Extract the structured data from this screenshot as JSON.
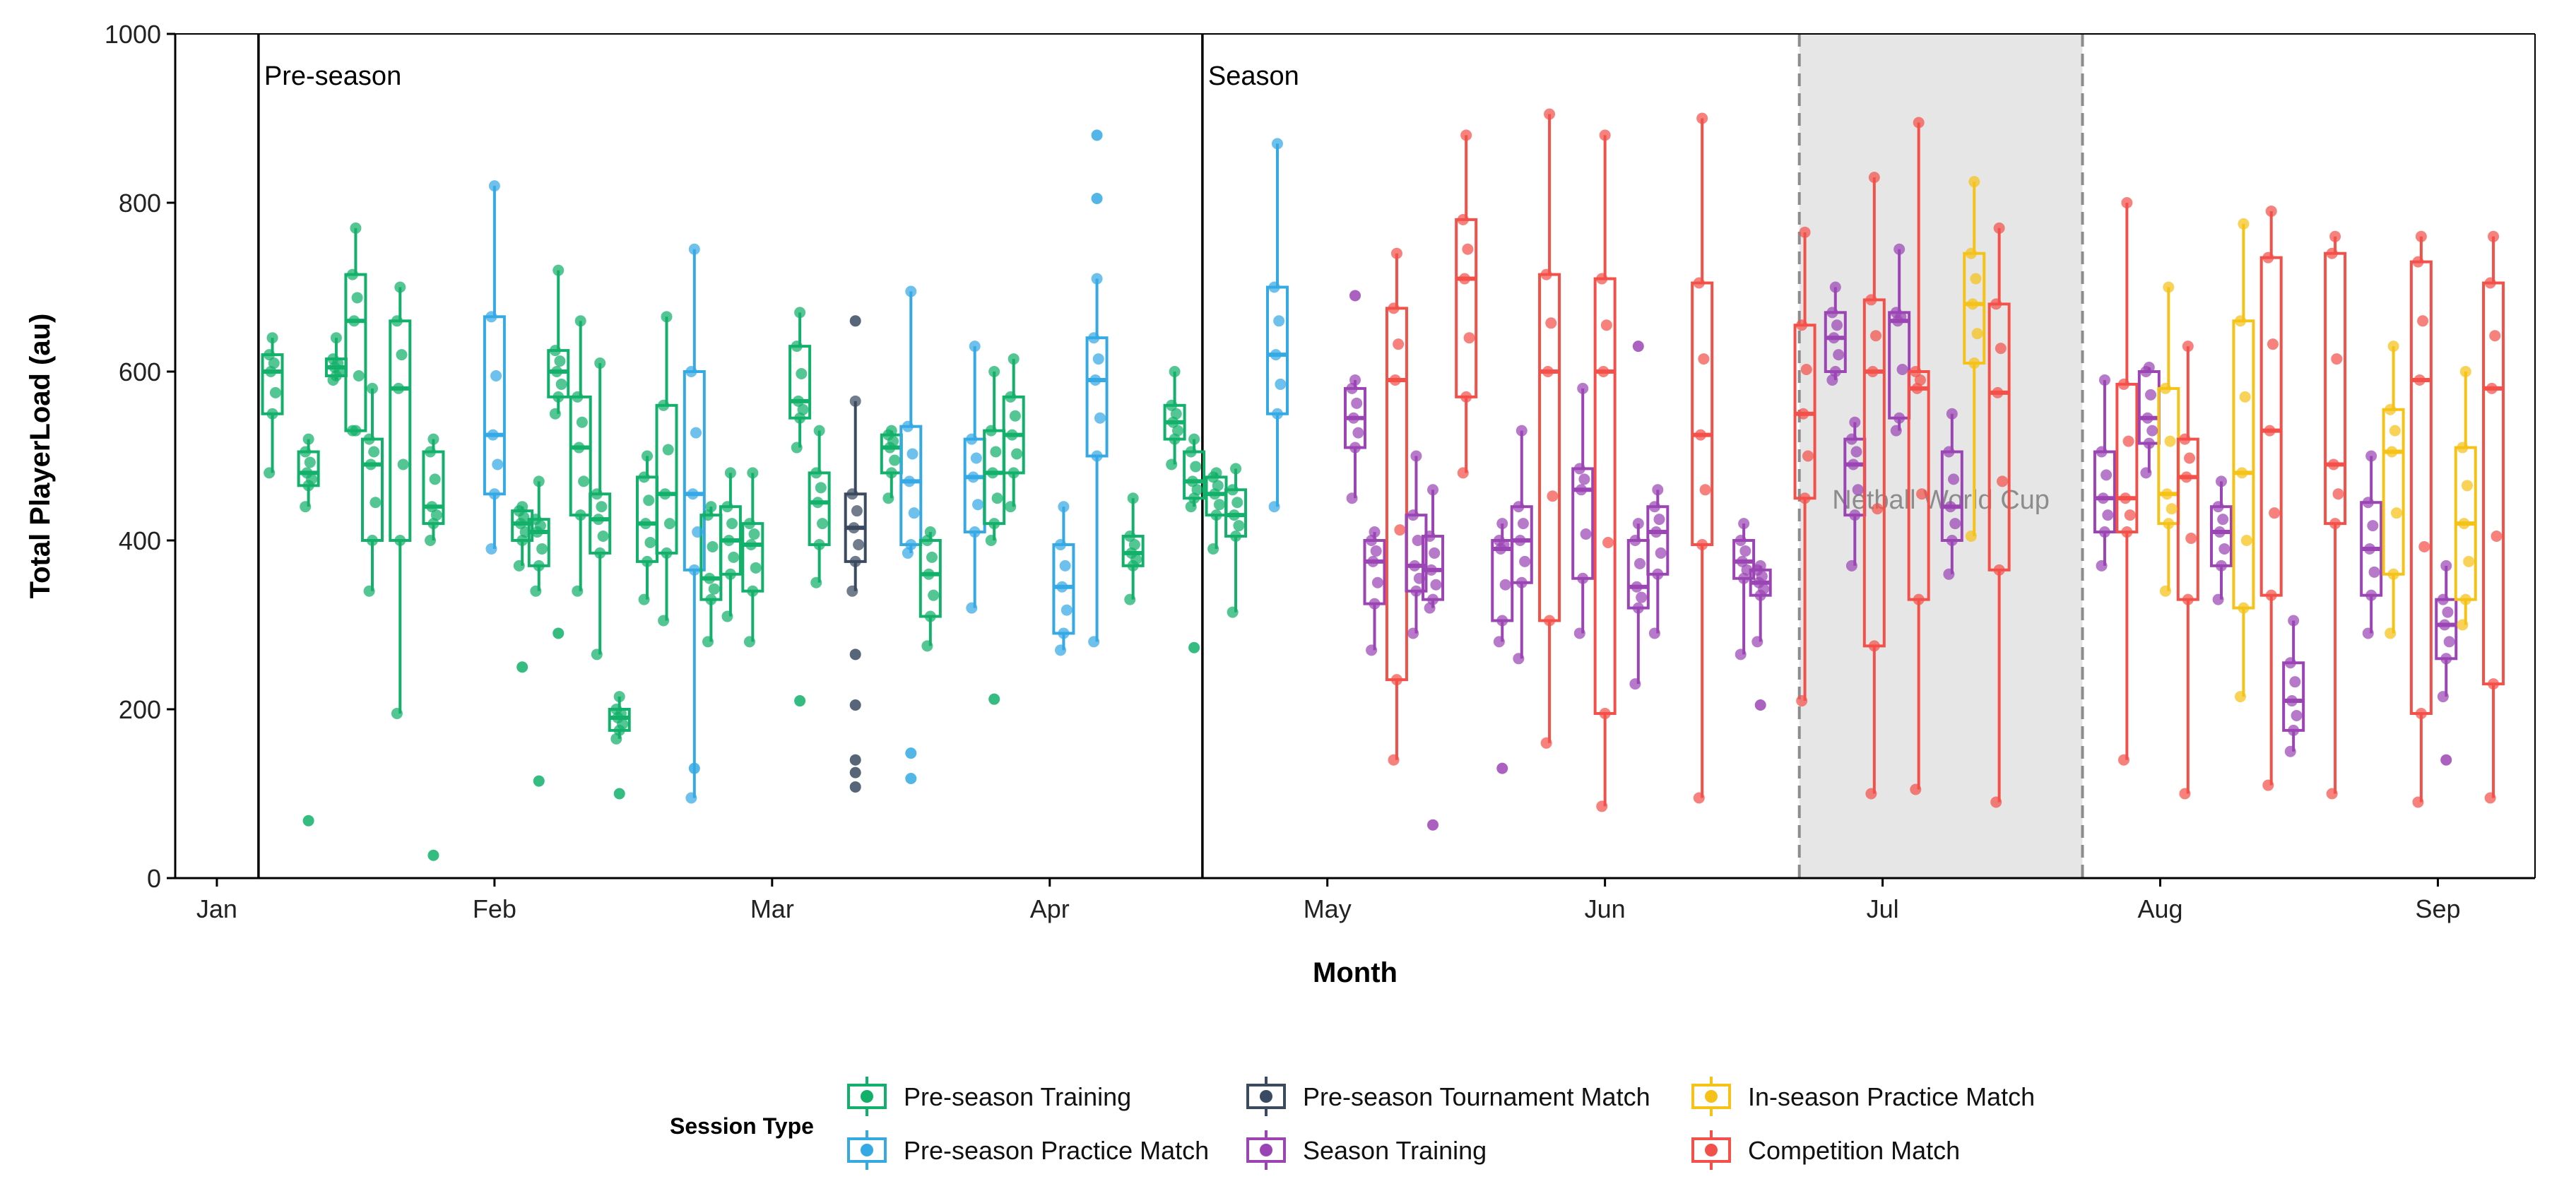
{
  "chart_data": {
    "type": "box",
    "xlabel": "Month",
    "ylabel": "Total PlayerLoad (au)",
    "x_ticks": [
      "Jan",
      "Feb",
      "Mar",
      "Apr",
      "May",
      "Jun",
      "Jul",
      "Aug",
      "Sep"
    ],
    "y_ticks": [
      0,
      200,
      400,
      600,
      800,
      1000
    ],
    "ylim": [
      0,
      1000
    ],
    "x_domain": [
      -0.15,
      8.35
    ],
    "grid": false,
    "phase_markers": [
      {
        "label": "Pre-season",
        "x": 0.15
      },
      {
        "label": "Season",
        "x": 3.55
      }
    ],
    "shaded_region": {
      "label": "Netball World Cup",
      "x_start": 5.7,
      "x_end": 6.72
    },
    "legend": {
      "title": "Session Type",
      "position": "bottom",
      "items": [
        {
          "key": "pst",
          "label": "Pre-season Training"
        },
        {
          "key": "ptm",
          "label": "Pre-season Tournament Match"
        },
        {
          "key": "ipm",
          "label": "In-season Practice Match"
        },
        {
          "key": "ppm",
          "label": "Pre-season Practice Match"
        },
        {
          "key": "st",
          "label": "Season Training"
        },
        {
          "key": "cm",
          "label": "Competition Match"
        }
      ]
    },
    "colors": {
      "pst": "#12b06a",
      "ppm": "#34a9e4",
      "ptm": "#3a4a60",
      "st": "#9b45b5",
      "ipm": "#f5c218",
      "cm": "#f4504a"
    },
    "boxes": [
      {
        "type": "pst",
        "x": 0.2,
        "min": 480,
        "q1": 550,
        "median": 600,
        "q3": 620,
        "max": 640
      },
      {
        "type": "pst",
        "x": 0.33,
        "min": 440,
        "q1": 465,
        "median": 480,
        "q3": 505,
        "max": 520
      },
      {
        "type": "pst",
        "x": 0.43,
        "min": 590,
        "q1": 595,
        "median": 605,
        "q3": 615,
        "max": 640
      },
      {
        "type": "pst",
        "x": 0.5,
        "min": 530,
        "q1": 530,
        "median": 660,
        "q3": 715,
        "max": 770
      },
      {
        "type": "pst",
        "x": 0.56,
        "min": 340,
        "q1": 400,
        "median": 490,
        "q3": 520,
        "max": 580
      },
      {
        "type": "pst",
        "x": 0.66,
        "min": 195,
        "q1": 400,
        "median": 580,
        "q3": 660,
        "max": 700
      },
      {
        "type": "pst",
        "x": 0.78,
        "min": 400,
        "q1": 420,
        "median": 440,
        "q3": 505,
        "max": 520
      },
      {
        "type": "ppm",
        "x": 1.0,
        "min": 390,
        "q1": 455,
        "median": 525,
        "q3": 665,
        "max": 820
      },
      {
        "type": "pst",
        "x": 1.1,
        "min": 370,
        "q1": 400,
        "median": 420,
        "q3": 435,
        "max": 440
      },
      {
        "type": "pst",
        "x": 1.16,
        "min": 340,
        "q1": 370,
        "median": 410,
        "q3": 425,
        "max": 470
      },
      {
        "type": "pst",
        "x": 1.23,
        "min": 550,
        "q1": 570,
        "median": 600,
        "q3": 625,
        "max": 720
      },
      {
        "type": "pst",
        "x": 1.31,
        "min": 340,
        "q1": 430,
        "median": 510,
        "q3": 570,
        "max": 660
      },
      {
        "type": "pst",
        "x": 1.38,
        "min": 265,
        "q1": 385,
        "median": 425,
        "q3": 455,
        "max": 610
      },
      {
        "type": "pst",
        "x": 1.45,
        "min": 165,
        "q1": 175,
        "median": 190,
        "q3": 200,
        "max": 215
      },
      {
        "type": "pst",
        "x": 1.55,
        "min": 330,
        "q1": 375,
        "median": 420,
        "q3": 475,
        "max": 500
      },
      {
        "type": "pst",
        "x": 1.62,
        "min": 305,
        "q1": 385,
        "median": 455,
        "q3": 560,
        "max": 665
      },
      {
        "type": "ppm",
        "x": 1.72,
        "min": 95,
        "q1": 365,
        "median": 455,
        "q3": 600,
        "max": 745
      },
      {
        "type": "pst",
        "x": 1.78,
        "min": 280,
        "q1": 330,
        "median": 355,
        "q3": 430,
        "max": 440
      },
      {
        "type": "pst",
        "x": 1.85,
        "min": 310,
        "q1": 360,
        "median": 400,
        "q3": 440,
        "max": 480
      },
      {
        "type": "pst",
        "x": 1.93,
        "min": 280,
        "q1": 340,
        "median": 395,
        "q3": 420,
        "max": 480
      },
      {
        "type": "pst",
        "x": 2.1,
        "min": 510,
        "q1": 545,
        "median": 565,
        "q3": 630,
        "max": 670
      },
      {
        "type": "pst",
        "x": 2.17,
        "min": 350,
        "q1": 395,
        "median": 445,
        "q3": 480,
        "max": 530
      },
      {
        "type": "ptm",
        "x": 2.3,
        "min": 340,
        "q1": 375,
        "median": 415,
        "q3": 455,
        "max": 565
      },
      {
        "type": "pst",
        "x": 2.43,
        "min": 450,
        "q1": 480,
        "median": 510,
        "q3": 525,
        "max": 530
      },
      {
        "type": "ppm",
        "x": 2.5,
        "min": 385,
        "q1": 395,
        "median": 470,
        "q3": 535,
        "max": 695
      },
      {
        "type": "pst",
        "x": 2.57,
        "min": 275,
        "q1": 310,
        "median": 360,
        "q3": 400,
        "max": 410
      },
      {
        "type": "ppm",
        "x": 2.73,
        "min": 320,
        "q1": 410,
        "median": 475,
        "q3": 520,
        "max": 630
      },
      {
        "type": "pst",
        "x": 2.8,
        "min": 400,
        "q1": 420,
        "median": 480,
        "q3": 530,
        "max": 600
      },
      {
        "type": "pst",
        "x": 2.87,
        "min": 440,
        "q1": 480,
        "median": 525,
        "q3": 570,
        "max": 615
      },
      {
        "type": "ppm",
        "x": 3.05,
        "min": 270,
        "q1": 290,
        "median": 345,
        "q3": 395,
        "max": 440
      },
      {
        "type": "ppm",
        "x": 3.17,
        "min": 280,
        "q1": 500,
        "median": 590,
        "q3": 640,
        "max": 710
      },
      {
        "type": "pst",
        "x": 3.3,
        "min": 330,
        "q1": 370,
        "median": 385,
        "q3": 405,
        "max": 450
      },
      {
        "type": "pst",
        "x": 3.45,
        "min": 490,
        "q1": 520,
        "median": 540,
        "q3": 560,
        "max": 600
      },
      {
        "type": "pst",
        "x": 3.52,
        "min": 440,
        "q1": 450,
        "median": 470,
        "q3": 505,
        "max": 520
      },
      {
        "type": "pst",
        "x": 3.6,
        "min": 390,
        "q1": 430,
        "median": 455,
        "q3": 475,
        "max": 480
      },
      {
        "type": "pst",
        "x": 3.67,
        "min": 315,
        "q1": 405,
        "median": 430,
        "q3": 460,
        "max": 485
      },
      {
        "type": "ppm",
        "x": 3.82,
        "min": 440,
        "q1": 550,
        "median": 620,
        "q3": 700,
        "max": 870
      },
      {
        "type": "st",
        "x": 4.1,
        "min": 450,
        "q1": 510,
        "median": 545,
        "q3": 580,
        "max": 590
      },
      {
        "type": "st",
        "x": 4.17,
        "min": 270,
        "q1": 325,
        "median": 375,
        "q3": 400,
        "max": 410
      },
      {
        "type": "cm",
        "x": 4.25,
        "min": 140,
        "q1": 235,
        "median": 590,
        "q3": 675,
        "max": 740
      },
      {
        "type": "st",
        "x": 4.32,
        "min": 290,
        "q1": 340,
        "median": 370,
        "q3": 430,
        "max": 500
      },
      {
        "type": "st",
        "x": 4.38,
        "min": 320,
        "q1": 330,
        "median": 365,
        "q3": 405,
        "max": 460
      },
      {
        "type": "cm",
        "x": 4.5,
        "min": 480,
        "q1": 570,
        "median": 710,
        "q3": 780,
        "max": 880
      },
      {
        "type": "st",
        "x": 4.63,
        "min": 280,
        "q1": 305,
        "median": 390,
        "q3": 400,
        "max": 420
      },
      {
        "type": "st",
        "x": 4.7,
        "min": 260,
        "q1": 350,
        "median": 400,
        "q3": 440,
        "max": 530
      },
      {
        "type": "cm",
        "x": 4.8,
        "min": 160,
        "q1": 305,
        "median": 600,
        "q3": 715,
        "max": 905
      },
      {
        "type": "st",
        "x": 4.92,
        "min": 290,
        "q1": 355,
        "median": 460,
        "q3": 485,
        "max": 580
      },
      {
        "type": "cm",
        "x": 5.0,
        "min": 85,
        "q1": 195,
        "median": 600,
        "q3": 710,
        "max": 880
      },
      {
        "type": "st",
        "x": 5.12,
        "min": 230,
        "q1": 320,
        "median": 345,
        "q3": 400,
        "max": 420
      },
      {
        "type": "st",
        "x": 5.19,
        "min": 290,
        "q1": 360,
        "median": 410,
        "q3": 440,
        "max": 460
      },
      {
        "type": "cm",
        "x": 5.35,
        "min": 95,
        "q1": 395,
        "median": 525,
        "q3": 705,
        "max": 900
      },
      {
        "type": "st",
        "x": 5.5,
        "min": 265,
        "q1": 355,
        "median": 375,
        "q3": 400,
        "max": 420
      },
      {
        "type": "st",
        "x": 5.56,
        "min": 280,
        "q1": 335,
        "median": 350,
        "q3": 365,
        "max": 370
      },
      {
        "type": "cm",
        "x": 5.72,
        "min": 210,
        "q1": 450,
        "median": 550,
        "q3": 655,
        "max": 765
      },
      {
        "type": "st",
        "x": 5.83,
        "min": 590,
        "q1": 600,
        "median": 640,
        "q3": 670,
        "max": 700
      },
      {
        "type": "st",
        "x": 5.9,
        "min": 370,
        "q1": 430,
        "median": 490,
        "q3": 520,
        "max": 540
      },
      {
        "type": "cm",
        "x": 5.97,
        "min": 100,
        "q1": 275,
        "median": 600,
        "q3": 685,
        "max": 830
      },
      {
        "type": "st",
        "x": 6.06,
        "min": 530,
        "q1": 545,
        "median": 660,
        "q3": 670,
        "max": 745
      },
      {
        "type": "cm",
        "x": 6.13,
        "min": 105,
        "q1": 330,
        "median": 580,
        "q3": 600,
        "max": 895
      },
      {
        "type": "st",
        "x": 6.25,
        "min": 360,
        "q1": 400,
        "median": 440,
        "q3": 505,
        "max": 550
      },
      {
        "type": "ipm",
        "x": 6.33,
        "min": 405,
        "q1": 610,
        "median": 680,
        "q3": 740,
        "max": 825
      },
      {
        "type": "cm",
        "x": 6.42,
        "min": 90,
        "q1": 365,
        "median": 575,
        "q3": 680,
        "max": 770
      },
      {
        "type": "st",
        "x": 6.8,
        "min": 370,
        "q1": 410,
        "median": 450,
        "q3": 505,
        "max": 590
      },
      {
        "type": "cm",
        "x": 6.88,
        "min": 140,
        "q1": 410,
        "median": 450,
        "q3": 585,
        "max": 800
      },
      {
        "type": "st",
        "x": 6.96,
        "min": 480,
        "q1": 515,
        "median": 545,
        "q3": 600,
        "max": 605
      },
      {
        "type": "ipm",
        "x": 7.03,
        "min": 340,
        "q1": 420,
        "median": 455,
        "q3": 580,
        "max": 700
      },
      {
        "type": "cm",
        "x": 7.1,
        "min": 100,
        "q1": 330,
        "median": 475,
        "q3": 520,
        "max": 630
      },
      {
        "type": "st",
        "x": 7.22,
        "min": 330,
        "q1": 370,
        "median": 410,
        "q3": 440,
        "max": 470
      },
      {
        "type": "ipm",
        "x": 7.3,
        "min": 215,
        "q1": 320,
        "median": 480,
        "q3": 660,
        "max": 775
      },
      {
        "type": "cm",
        "x": 7.4,
        "min": 110,
        "q1": 335,
        "median": 530,
        "q3": 735,
        "max": 790
      },
      {
        "type": "st",
        "x": 7.48,
        "min": 150,
        "q1": 175,
        "median": 210,
        "q3": 255,
        "max": 305
      },
      {
        "type": "cm",
        "x": 7.63,
        "min": 100,
        "q1": 420,
        "median": 490,
        "q3": 740,
        "max": 760
      },
      {
        "type": "st",
        "x": 7.76,
        "min": 290,
        "q1": 335,
        "median": 390,
        "q3": 445,
        "max": 500
      },
      {
        "type": "ipm",
        "x": 7.84,
        "min": 290,
        "q1": 360,
        "median": 505,
        "q3": 555,
        "max": 630
      },
      {
        "type": "cm",
        "x": 7.94,
        "min": 90,
        "q1": 195,
        "median": 590,
        "q3": 730,
        "max": 760
      },
      {
        "type": "st",
        "x": 8.03,
        "min": 215,
        "q1": 260,
        "median": 300,
        "q3": 330,
        "max": 370
      },
      {
        "type": "ipm",
        "x": 8.1,
        "min": 300,
        "q1": 330,
        "median": 420,
        "q3": 510,
        "max": 600
      },
      {
        "type": "cm",
        "x": 8.2,
        "min": 95,
        "q1": 230,
        "median": 580,
        "q3": 705,
        "max": 760
      }
    ],
    "outliers": [
      {
        "type": "pst",
        "x": 0.33,
        "y": 68
      },
      {
        "type": "pst",
        "x": 0.78,
        "y": 27
      },
      {
        "type": "pst",
        "x": 1.1,
        "y": 250
      },
      {
        "type": "pst",
        "x": 1.16,
        "y": 115
      },
      {
        "type": "pst",
        "x": 1.23,
        "y": 290
      },
      {
        "type": "pst",
        "x": 1.45,
        "y": 100
      },
      {
        "type": "ppm",
        "x": 1.72,
        "y": 130
      },
      {
        "type": "pst",
        "x": 2.1,
        "y": 210
      },
      {
        "type": "ptm",
        "x": 2.3,
        "y": 660
      },
      {
        "type": "ptm",
        "x": 2.3,
        "y": 265
      },
      {
        "type": "ptm",
        "x": 2.3,
        "y": 205
      },
      {
        "type": "ptm",
        "x": 2.3,
        "y": 140
      },
      {
        "type": "ptm",
        "x": 2.3,
        "y": 125
      },
      {
        "type": "ptm",
        "x": 2.3,
        "y": 108
      },
      {
        "type": "ppm",
        "x": 2.5,
        "y": 148
      },
      {
        "type": "ppm",
        "x": 2.5,
        "y": 118
      },
      {
        "type": "pst",
        "x": 2.8,
        "y": 212
      },
      {
        "type": "ppm",
        "x": 3.17,
        "y": 805
      },
      {
        "type": "ppm",
        "x": 3.17,
        "y": 880
      },
      {
        "type": "pst",
        "x": 3.52,
        "y": 273
      },
      {
        "type": "st",
        "x": 4.1,
        "y": 690
      },
      {
        "type": "st",
        "x": 4.38,
        "y": 63
      },
      {
        "type": "st",
        "x": 4.63,
        "y": 130
      },
      {
        "type": "st",
        "x": 5.12,
        "y": 630
      },
      {
        "type": "st",
        "x": 5.56,
        "y": 205
      },
      {
        "type": "st",
        "x": 8.03,
        "y": 140
      }
    ]
  }
}
